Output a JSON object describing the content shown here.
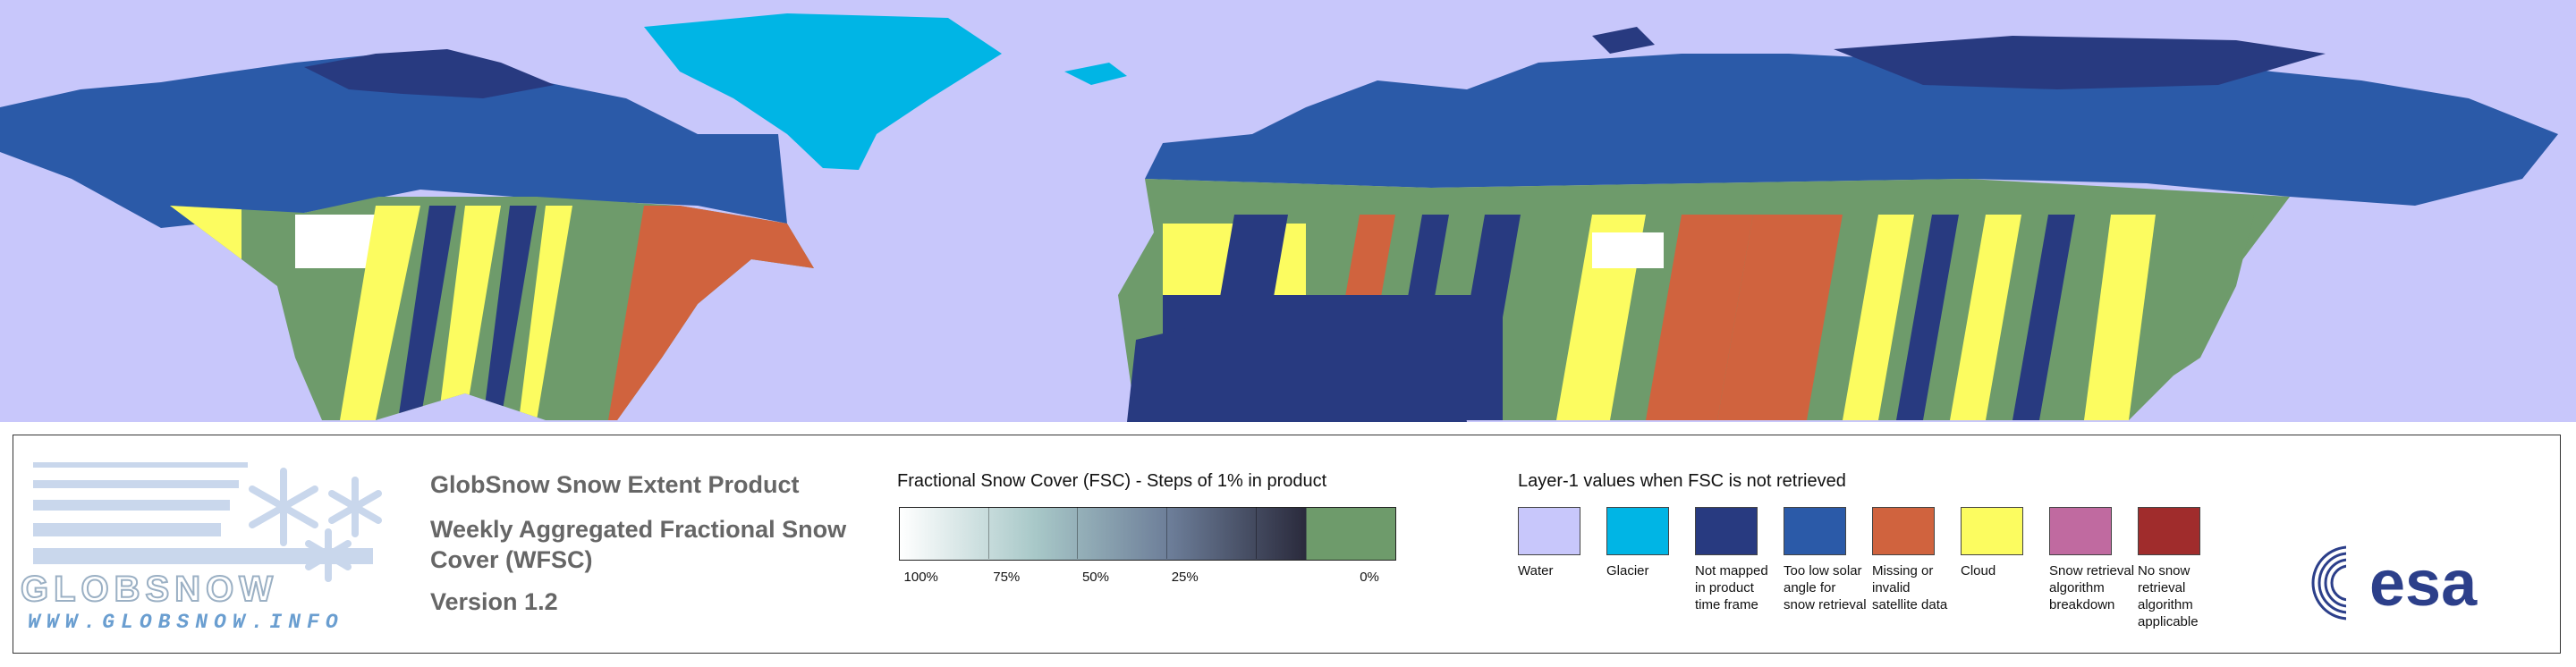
{
  "map": {
    "colors": {
      "water": "#c8c7fb",
      "glacier": "#00b5e5",
      "not_mapped": "#283a80",
      "low_sun": "#2b5aa8",
      "missing": "#d0633e",
      "cloud": "#fcfc60",
      "zero_snow": "#6e9b6b",
      "full_snow": "#ffffff"
    }
  },
  "logo": {
    "word": "GLOBSNOW",
    "url": "WWW.GLOBSNOW.INFO"
  },
  "product": {
    "title": "GlobSnow Snow Extent Product",
    "subtitle": "Weekly Aggregated Fractional Snow Cover (WFSC)",
    "version": "Version 1.2"
  },
  "fsc_legend": {
    "title": "Fractional Snow Cover (FSC) - Steps of 1% in product",
    "labels": [
      "100%",
      "75%",
      "50%",
      "25%",
      "0%"
    ],
    "gradient": [
      "#ffffff",
      "#a8c8c8",
      "#6c7d98",
      "#2a2a3c"
    ],
    "zero_color": "#6e9b6b"
  },
  "layer1_legend": {
    "title": "Layer-1 values when FSC is not retrieved",
    "categories": [
      {
        "label": "Water",
        "color": "#c8c7fb"
      },
      {
        "label": "Glacier",
        "color": "#00b5e5"
      },
      {
        "label": "Not mapped in product time frame",
        "color": "#283a80"
      },
      {
        "label": "Too low solar angle for snow retrieval",
        "color": "#2b5aa8"
      },
      {
        "label": "Missing or invalid satellite data",
        "color": "#d0633e"
      },
      {
        "label": "Cloud",
        "color": "#fcfc60"
      },
      {
        "label": "Snow retrieval algorithm breakdown",
        "color": "#c06aa0"
      },
      {
        "label": "No snow retrieval algorithm applicable",
        "color": "#a02c2c"
      }
    ]
  },
  "esa": {
    "text": "esa",
    "color": "#2c3f8a"
  }
}
